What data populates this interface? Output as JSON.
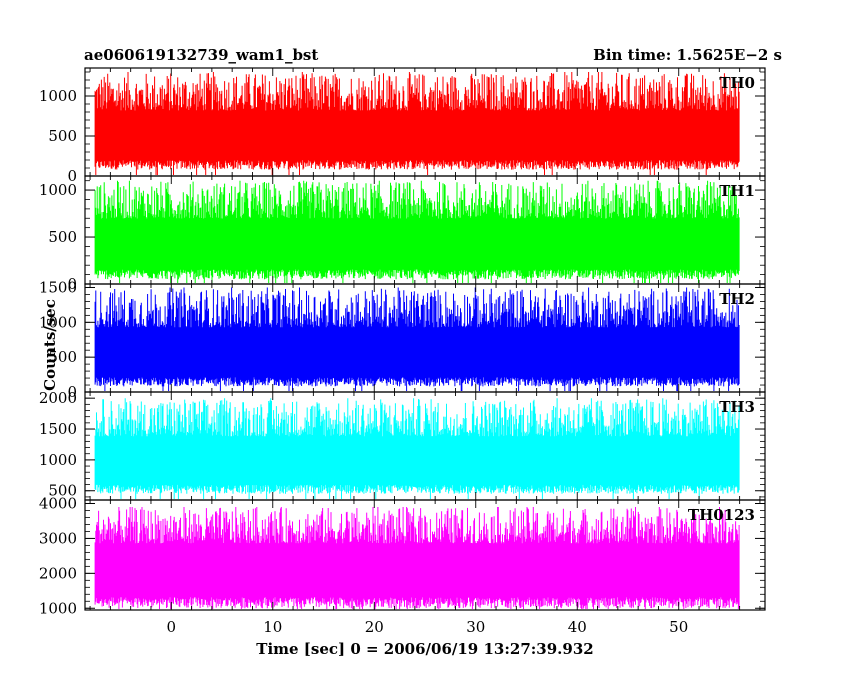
{
  "title": "ae060619132739_wam1_bst",
  "bin_time_label": "Bin time: 1.5625E−2 s",
  "xlabel": "Time [sec] 0 = 2006/06/19 13:27:39.932",
  "ylabel": "Counts/sec",
  "chart_data": {
    "type": "line",
    "title": "ae060619132739_wam1_bst",
    "xlabel": "Time [sec] 0 = 2006/06/19 13:27:39.932",
    "ylabel": "Counts/sec",
    "xlim": [
      -8.5,
      58.5
    ],
    "xticks": [
      0,
      10,
      20,
      30,
      40,
      50
    ],
    "x_data_range": [
      -7.5,
      56.0
    ],
    "bin_time_sec": 0.015625,
    "grid": false,
    "series": [
      {
        "name": "TH0",
        "color": "#ff0000",
        "ylim": [
          0,
          1350
        ],
        "yticks": [
          0,
          500,
          1000
        ],
        "base": 80,
        "mean": 560,
        "peak": 1300
      },
      {
        "name": "TH1",
        "color": "#00ff00",
        "ylim": [
          0,
          1150
        ],
        "yticks": [
          0,
          500,
          1000
        ],
        "base": 50,
        "mean": 480,
        "peak": 1100
      },
      {
        "name": "TH2",
        "color": "#0000ff",
        "ylim": [
          0,
          1550
        ],
        "yticks": [
          0,
          500,
          1000,
          1500
        ],
        "base": 80,
        "mean": 620,
        "peak": 1500
      },
      {
        "name": "TH3",
        "color": "#00ffff",
        "ylim": [
          350,
          2100
        ],
        "yticks": [
          500,
          1000,
          1500,
          2000
        ],
        "base": 450,
        "mean": 1050,
        "peak": 2000
      },
      {
        "name": "TH0123",
        "color": "#ff00ff",
        "ylim": [
          950,
          4100
        ],
        "yticks": [
          1000,
          2000,
          3000,
          4000
        ],
        "base": 1000,
        "mean": 2300,
        "peak": 3900
      }
    ]
  }
}
